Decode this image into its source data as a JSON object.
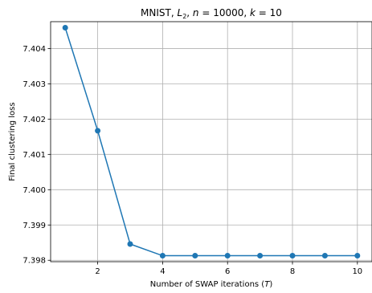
{
  "chart_data": {
    "type": "line",
    "title": "MNIST, L₂, n = 10000, k = 10",
    "xlabel": "Number of SWAP iterations (T)",
    "ylabel": "Final clustering loss",
    "x": [
      1,
      2,
      3,
      4,
      5,
      6,
      7,
      8,
      9,
      10
    ],
    "series": [
      {
        "values": [
          7.40459,
          7.40167,
          7.39846,
          7.39813,
          7.39813,
          7.39813,
          7.39813,
          7.39813,
          7.39813,
          7.39813
        ],
        "color": "#1f77b4",
        "marker": "circle"
      }
    ],
    "xticks": [
      2,
      4,
      6,
      8,
      10
    ],
    "yticks": [
      7.398,
      7.399,
      7.4,
      7.401,
      7.402,
      7.403,
      7.404
    ],
    "xlim": [
      0.55,
      10.45
    ],
    "ylim": [
      7.39796,
      7.40476
    ],
    "grid": true
  }
}
